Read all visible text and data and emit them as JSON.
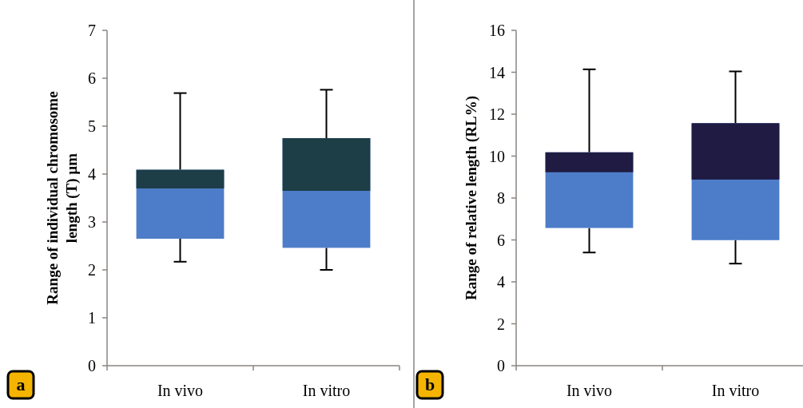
{
  "chart_data": [
    {
      "type": "box",
      "ylabel": "Range of individual chromosome\nlength (T) µm",
      "categories": [
        "In vivo",
        "In vitro"
      ],
      "ylim": [
        0,
        7
      ],
      "yticks": [
        0,
        1,
        2,
        3,
        4,
        5,
        6,
        7
      ],
      "colors": [
        "#4d7dc9",
        "#4d7dc9"
      ],
      "color": "#1d3d47",
      "annotations": [
        "a"
      ],
      "boxes": [
        {
          "low": 2.17,
          "q1": 2.65,
          "median": 3.7,
          "q3": 4.09,
          "high": 5.69
        },
        {
          "low": 2.0,
          "q1": 2.46,
          "median": 3.65,
          "q3": 4.75,
          "high": 5.76
        }
      ]
    },
    {
      "type": "box",
      "ylabel": "Range of relative length (RL%)",
      "categories": [
        "In vivo",
        "In vitro"
      ],
      "ylim": [
        0,
        16
      ],
      "yticks": [
        0,
        2,
        4,
        6,
        8,
        10,
        12,
        14,
        16
      ],
      "colors": [
        "#4d7dc9",
        "#4d7dc9"
      ],
      "color": "#1f1b42",
      "annotations": [
        "b"
      ],
      "boxes": [
        {
          "low": 5.4,
          "q1": 6.57,
          "median": 9.23,
          "q3": 10.18,
          "high": 14.14
        },
        {
          "low": 4.87,
          "q1": 5.99,
          "median": 8.88,
          "q3": 11.57,
          "high": 14.04
        }
      ]
    }
  ]
}
